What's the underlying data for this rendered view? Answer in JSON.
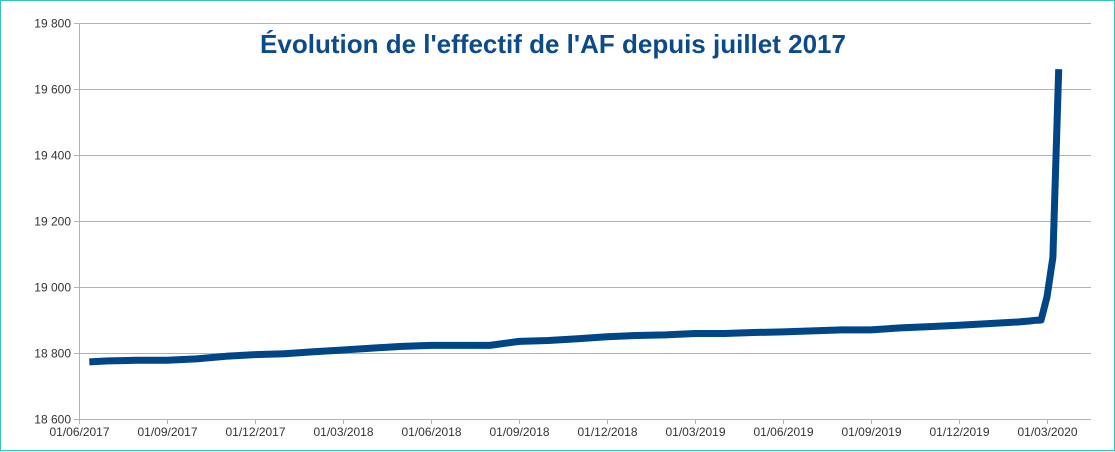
{
  "chart_data": {
    "type": "line",
    "title": "Évolution de l'effectif de l'AF depuis juillet 2017",
    "xlabel": "",
    "ylabel": "",
    "x_tick_labels": [
      "01/06/2017",
      "01/09/2017",
      "01/12/2017",
      "01/03/2018",
      "01/06/2018",
      "01/09/2018",
      "01/12/2018",
      "01/03/2019",
      "01/06/2019",
      "01/09/2019",
      "01/12/2019",
      "01/03/2020"
    ],
    "y_tick_labels": [
      "18 600",
      "18 800",
      "19 000",
      "19 200",
      "19 400",
      "19 600",
      "19 800"
    ],
    "y_ticks": [
      18600,
      18800,
      19000,
      19200,
      19400,
      19600,
      19800
    ],
    "ylim": [
      18600,
      19800
    ],
    "xlim_months": [
      0,
      34.5
    ],
    "grid": true,
    "legend": "none",
    "series": [
      {
        "name": "Effectif AF",
        "color": "#004586",
        "x_months": [
          0.35,
          1,
          2,
          3,
          4,
          5,
          6,
          7,
          8,
          9,
          10,
          11,
          12,
          13,
          14,
          15,
          16,
          17,
          18,
          19,
          20,
          21,
          22,
          23,
          24,
          25,
          26,
          27,
          28,
          29,
          30,
          31,
          32,
          32.4,
          32.6,
          32.7,
          32.8,
          33.0,
          33.2,
          33.4
        ],
        "values": [
          18773,
          18776,
          18778,
          18778,
          18782,
          18790,
          18795,
          18798,
          18804,
          18809,
          18815,
          18820,
          18823,
          18823,
          18823,
          18835,
          18838,
          18843,
          18849,
          18853,
          18855,
          18859,
          18859,
          18862,
          18864,
          18867,
          18870,
          18870,
          18876,
          18880,
          18884,
          18889,
          18894,
          18897,
          18899,
          18899,
          18900,
          18970,
          19090,
          19660
        ]
      }
    ]
  }
}
